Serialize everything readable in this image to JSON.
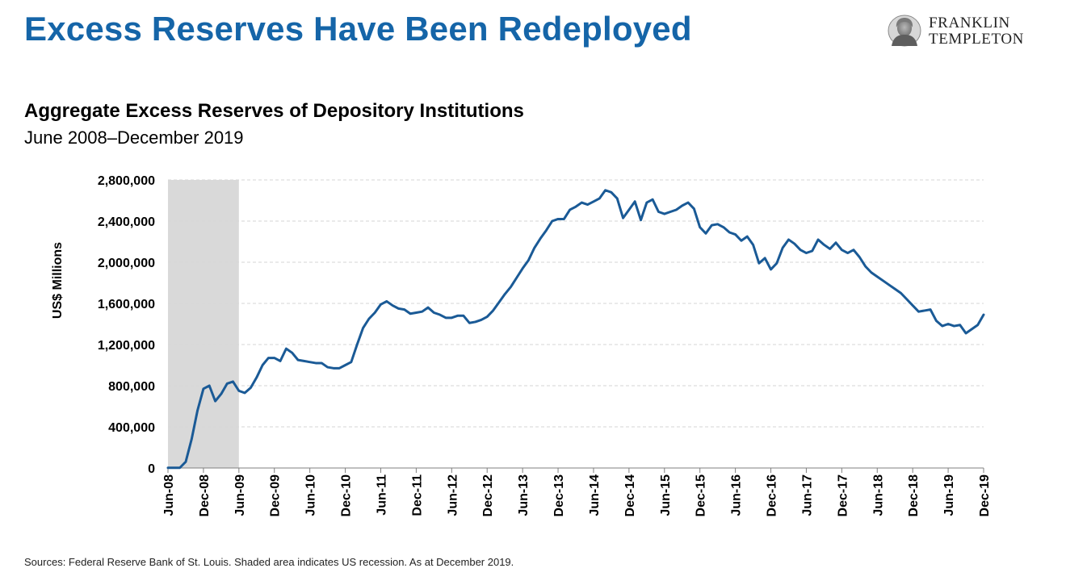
{
  "header": {
    "title": "Excess Reserves Have Been Redeployed",
    "logo_line1": "FRANKLIN",
    "logo_line2": "TEMPLETON"
  },
  "footer": {
    "source": "Sources: Federal Reserve Bank of St. Louis. Shaded area indicates US recession. As at December 2019."
  },
  "colors": {
    "title": "#1565a8",
    "line": "#1a5a96",
    "recession_shade": "#d9d9d9"
  },
  "chart_data": {
    "type": "line",
    "title": "Aggregate Excess Reserves of Depository Institutions",
    "subtitle": "June 2008–December 2019",
    "xlabel": "",
    "ylabel": "US$ Millions",
    "ylim": [
      0,
      2800000
    ],
    "yticks": [
      0,
      400000,
      800000,
      1200000,
      1600000,
      2000000,
      2400000,
      2800000
    ],
    "ytick_labels": [
      "0",
      "400,000",
      "800,000",
      "1,200,000",
      "1,600,000",
      "2,000,000",
      "2,400,000",
      "2,800,000"
    ],
    "xtick_labels": [
      "Jun-08",
      "Dec-08",
      "Jun-09",
      "Dec-09",
      "Jun-10",
      "Dec-10",
      "Jun-11",
      "Dec-11",
      "Jun-12",
      "Dec-12",
      "Jun-13",
      "Dec-13",
      "Jun-14",
      "Dec-14",
      "Jun-15",
      "Dec-15",
      "Jun-16",
      "Dec-16",
      "Jun-17",
      "Dec-17",
      "Jun-18",
      "Dec-18",
      "Jun-19",
      "Dec-19"
    ],
    "x_start": "Jun-08",
    "x_end": "Dec-19",
    "grid": true,
    "shaded_region": {
      "from": "Jun-08",
      "to": "Jun-09"
    },
    "series": [
      {
        "values": [
          2000,
          2000,
          2000,
          60000,
          280000,
          560000,
          770000,
          800000,
          650000,
          720000,
          820000,
          840000,
          750000,
          730000,
          780000,
          880000,
          1000000,
          1070000,
          1070000,
          1040000,
          1160000,
          1120000,
          1050000,
          1040000,
          1030000,
          1020000,
          1020000,
          980000,
          970000,
          970000,
          1000000,
          1030000,
          1200000,
          1360000,
          1450000,
          1510000,
          1590000,
          1620000,
          1580000,
          1550000,
          1540000,
          1500000,
          1510000,
          1520000,
          1560000,
          1510000,
          1490000,
          1460000,
          1460000,
          1480000,
          1480000,
          1410000,
          1420000,
          1440000,
          1470000,
          1530000,
          1610000,
          1690000,
          1760000,
          1850000,
          1940000,
          2020000,
          2140000,
          2230000,
          2310000,
          2400000,
          2420000,
          2420000,
          2510000,
          2540000,
          2580000,
          2560000,
          2590000,
          2620000,
          2700000,
          2680000,
          2620000,
          2430000,
          2510000,
          2590000,
          2410000,
          2580000,
          2610000,
          2490000,
          2470000,
          2490000,
          2510000,
          2550000,
          2580000,
          2520000,
          2340000,
          2280000,
          2360000,
          2370000,
          2340000,
          2290000,
          2270000,
          2210000,
          2250000,
          2170000,
          1990000,
          2040000,
          1930000,
          1990000,
          2140000,
          2220000,
          2180000,
          2120000,
          2090000,
          2110000,
          2220000,
          2170000,
          2130000,
          2190000,
          2120000,
          2090000,
          2120000,
          2050000,
          1960000,
          1900000,
          1860000,
          1820000,
          1780000,
          1740000,
          1700000,
          1640000,
          1580000,
          1520000,
          1530000,
          1540000,
          1430000,
          1380000,
          1400000,
          1380000,
          1390000,
          1310000,
          1350000,
          1390000,
          1490000
        ]
      }
    ]
  }
}
